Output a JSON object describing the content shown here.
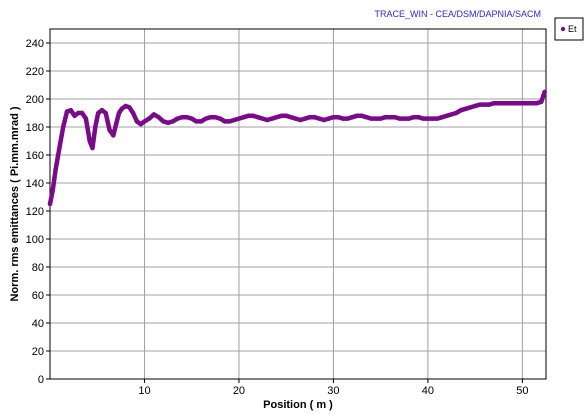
{
  "credit_text": "TRACE_WIN - CEA/DSM/DAPNIA/SACM",
  "colors": {
    "series": "#7a0a8a",
    "grid": "#a0a0a0",
    "credit": "#2a2ad8"
  },
  "chart_data": {
    "type": "line",
    "title": "",
    "xlabel": "Position ( m )",
    "ylabel": "Norm. rms emittances ( Pi.mm.mrad )",
    "xlim": [
      0,
      52.5
    ],
    "ylim": [
      0,
      250
    ],
    "xticks": [
      10,
      20,
      30,
      40,
      50
    ],
    "yticks": [
      0,
      20,
      40,
      60,
      80,
      100,
      120,
      140,
      160,
      180,
      200,
      220,
      240
    ],
    "grid": true,
    "legend": "top-right",
    "series": [
      {
        "name": "Et",
        "x": [
          0,
          0.3,
          0.6,
          1.0,
          1.4,
          1.8,
          2.2,
          2.6,
          3.0,
          3.4,
          3.8,
          4.2,
          4.5,
          4.8,
          5.1,
          5.5,
          5.9,
          6.3,
          6.7,
          7.0,
          7.3,
          7.6,
          8.0,
          8.4,
          8.8,
          9.2,
          9.6,
          10.0,
          10.5,
          11.0,
          11.5,
          12.0,
          12.5,
          13.0,
          13.5,
          14.0,
          14.5,
          15.0,
          15.5,
          16.0,
          16.5,
          17.0,
          17.5,
          18.0,
          18.5,
          19.0,
          19.5,
          20.0,
          20.5,
          21.0,
          21.5,
          22.0,
          22.5,
          23.0,
          23.5,
          24.0,
          24.5,
          25.0,
          25.5,
          26.0,
          26.5,
          27.0,
          27.5,
          28.0,
          28.5,
          29.0,
          29.5,
          30.0,
          30.5,
          31.0,
          31.5,
          32.0,
          32.5,
          33.0,
          33.5,
          34.0,
          34.5,
          35.0,
          35.5,
          36.0,
          36.5,
          37.0,
          37.5,
          38.0,
          38.5,
          39.0,
          39.5,
          40.0,
          40.5,
          41.0,
          41.5,
          42.0,
          42.5,
          43.0,
          43.5,
          44.0,
          44.5,
          45.0,
          45.5,
          46.0,
          46.5,
          47.0,
          47.5,
          48.0,
          48.5,
          49.0,
          49.5,
          50.0,
          50.5,
          51.0,
          51.5,
          52.0,
          52.2,
          52.35
        ],
        "y": [
          125,
          135,
          150,
          165,
          180,
          191,
          192,
          188,
          190,
          190,
          186,
          170,
          165,
          180,
          190,
          192,
          190,
          178,
          174,
          182,
          190,
          193,
          195,
          194,
          190,
          184,
          182,
          184,
          186,
          189,
          187,
          184,
          183,
          184,
          186,
          187,
          187,
          186,
          184,
          184,
          186,
          187,
          187,
          186,
          184,
          184,
          185,
          186,
          187,
          188,
          188,
          187,
          186,
          185,
          186,
          187,
          188,
          188,
          187,
          186,
          185,
          186,
          187,
          187,
          186,
          185,
          186,
          187,
          187,
          186,
          186,
          187,
          188,
          188,
          187,
          186,
          186,
          186,
          187,
          187,
          187,
          186,
          186,
          186,
          187,
          187,
          186,
          186,
          186,
          186,
          187,
          188,
          189,
          190,
          192,
          193,
          194,
          195,
          196,
          196,
          196,
          197,
          197,
          197,
          197,
          197,
          197,
          197,
          197,
          197,
          197,
          198,
          202,
          205
        ]
      }
    ]
  }
}
